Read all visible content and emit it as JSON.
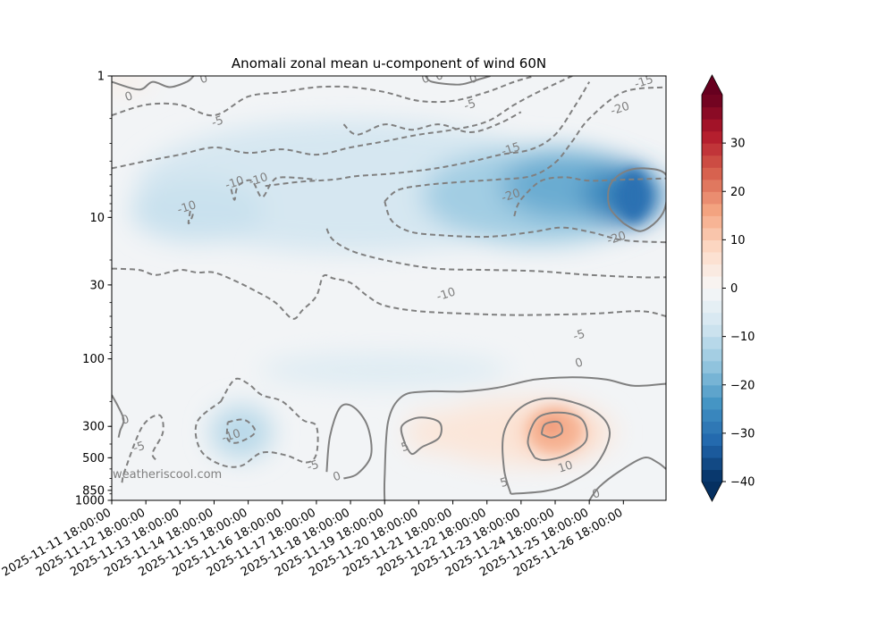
{
  "chart_data": {
    "type": "contour",
    "title": "Anomali zonal mean u-component of wind 60N",
    "xlabel": "",
    "ylabel": "",
    "y_scale": "log",
    "y_inverted": true,
    "ylim": [
      1000,
      1
    ],
    "y_ticks": [
      1,
      10,
      30,
      100,
      300,
      500,
      850,
      1000
    ],
    "x_range_days": [
      0,
      16.25
    ],
    "x_ticks": [
      {
        "day": 0,
        "label": "2025-11-11 18:00:00"
      },
      {
        "day": 1,
        "label": "2025-11-12 18:00:00"
      },
      {
        "day": 2,
        "label": "2025-11-13 18:00:00"
      },
      {
        "day": 3,
        "label": "2025-11-14 18:00:00"
      },
      {
        "day": 4,
        "label": "2025-11-15 18:00:00"
      },
      {
        "day": 5,
        "label": "2025-11-16 18:00:00"
      },
      {
        "day": 6,
        "label": "2025-11-17 18:00:00"
      },
      {
        "day": 7,
        "label": "2025-11-18 18:00:00"
      },
      {
        "day": 8,
        "label": "2025-11-19 18:00:00"
      },
      {
        "day": 9,
        "label": "2025-11-20 18:00:00"
      },
      {
        "day": 10,
        "label": "2025-11-21 18:00:00"
      },
      {
        "day": 11,
        "label": "2025-11-22 18:00:00"
      },
      {
        "day": 12,
        "label": "2025-11-23 18:00:00"
      },
      {
        "day": 13,
        "label": "2025-11-24 18:00:00"
      },
      {
        "day": 14,
        "label": "2025-11-25 18:00:00"
      },
      {
        "day": 15,
        "label": "2025-11-26 18:00:00"
      }
    ],
    "colorbar": {
      "vmin": -40,
      "vmax": 40,
      "step": 2.5,
      "ticks": [
        -40,
        -30,
        -20,
        -10,
        0,
        10,
        20,
        30
      ],
      "tick_labels": [
        "−40",
        "−30",
        "−20",
        "−10",
        "0",
        "10",
        "20",
        "30"
      ],
      "colormap": "RdBu_r",
      "extend": "both"
    },
    "features": [
      {
        "name": "upper-strat-easterly-anomaly",
        "day": 14.8,
        "p": 7,
        "value": -27
      },
      {
        "name": "upper-strat-anomaly-core",
        "day": 13.0,
        "p": 5,
        "value": -20
      },
      {
        "name": "mid-strat-weak-anomaly",
        "day": 2.0,
        "p": 8,
        "value": -10
      },
      {
        "name": "lower-trop-negative-anomaly",
        "day": 3.5,
        "p": 320,
        "value": -12
      },
      {
        "name": "troposphere-positive-anomaly",
        "day": 13.0,
        "p": 320,
        "value": 12
      },
      {
        "name": "troposphere-positive-secondary",
        "day": 9.0,
        "p": 330,
        "value": 5
      }
    ],
    "contour_labels": [
      {
        "text": "0",
        "day": 0.5,
        "p": 1.4
      },
      {
        "text": "0",
        "day": 2.7,
        "p": 1.05
      },
      {
        "text": "0",
        "day": 9.2,
        "p": 1.05
      },
      {
        "text": "0",
        "day": 9.6,
        "p": 1.0
      },
      {
        "text": "0",
        "day": 10.6,
        "p": 1.05
      },
      {
        "text": "-5",
        "day": 3.1,
        "p": 2.1
      },
      {
        "text": "-5",
        "day": 10.5,
        "p": 1.6
      },
      {
        "text": "-15",
        "day": 15.6,
        "p": 1.1
      },
      {
        "text": "-20",
        "day": 14.9,
        "p": 1.7
      },
      {
        "text": "-15",
        "day": 11.7,
        "p": 3.3
      },
      {
        "text": "-10",
        "day": 3.6,
        "p": 5.7
      },
      {
        "text": "-10",
        "day": 4.3,
        "p": 5.4
      },
      {
        "text": "-10",
        "day": 2.2,
        "p": 8.5
      },
      {
        "text": "-20",
        "day": 11.7,
        "p": 7.0
      },
      {
        "text": "-20",
        "day": 14.8,
        "p": 14.0
      },
      {
        "text": "-10",
        "day": 9.8,
        "p": 35.0
      },
      {
        "text": "-5",
        "day": 13.7,
        "p": 68.0
      },
      {
        "text": "0",
        "day": 13.7,
        "p": 107.0
      },
      {
        "text": "0",
        "day": 0.4,
        "p": 270.0
      },
      {
        "text": "-5",
        "day": 0.8,
        "p": 420.0
      },
      {
        "text": "-10",
        "day": 3.5,
        "p": 350.0
      },
      {
        "text": "-5",
        "day": 5.9,
        "p": 570.0
      },
      {
        "text": "0",
        "day": 6.6,
        "p": 680.0
      },
      {
        "text": "5",
        "day": 8.6,
        "p": 420.0
      },
      {
        "text": "10",
        "day": 13.3,
        "p": 580.0
      },
      {
        "text": "5",
        "day": 11.5,
        "p": 750.0
      },
      {
        "text": "0",
        "day": 14.2,
        "p": 900.0
      }
    ],
    "watermark": "weatheriscool.com"
  }
}
